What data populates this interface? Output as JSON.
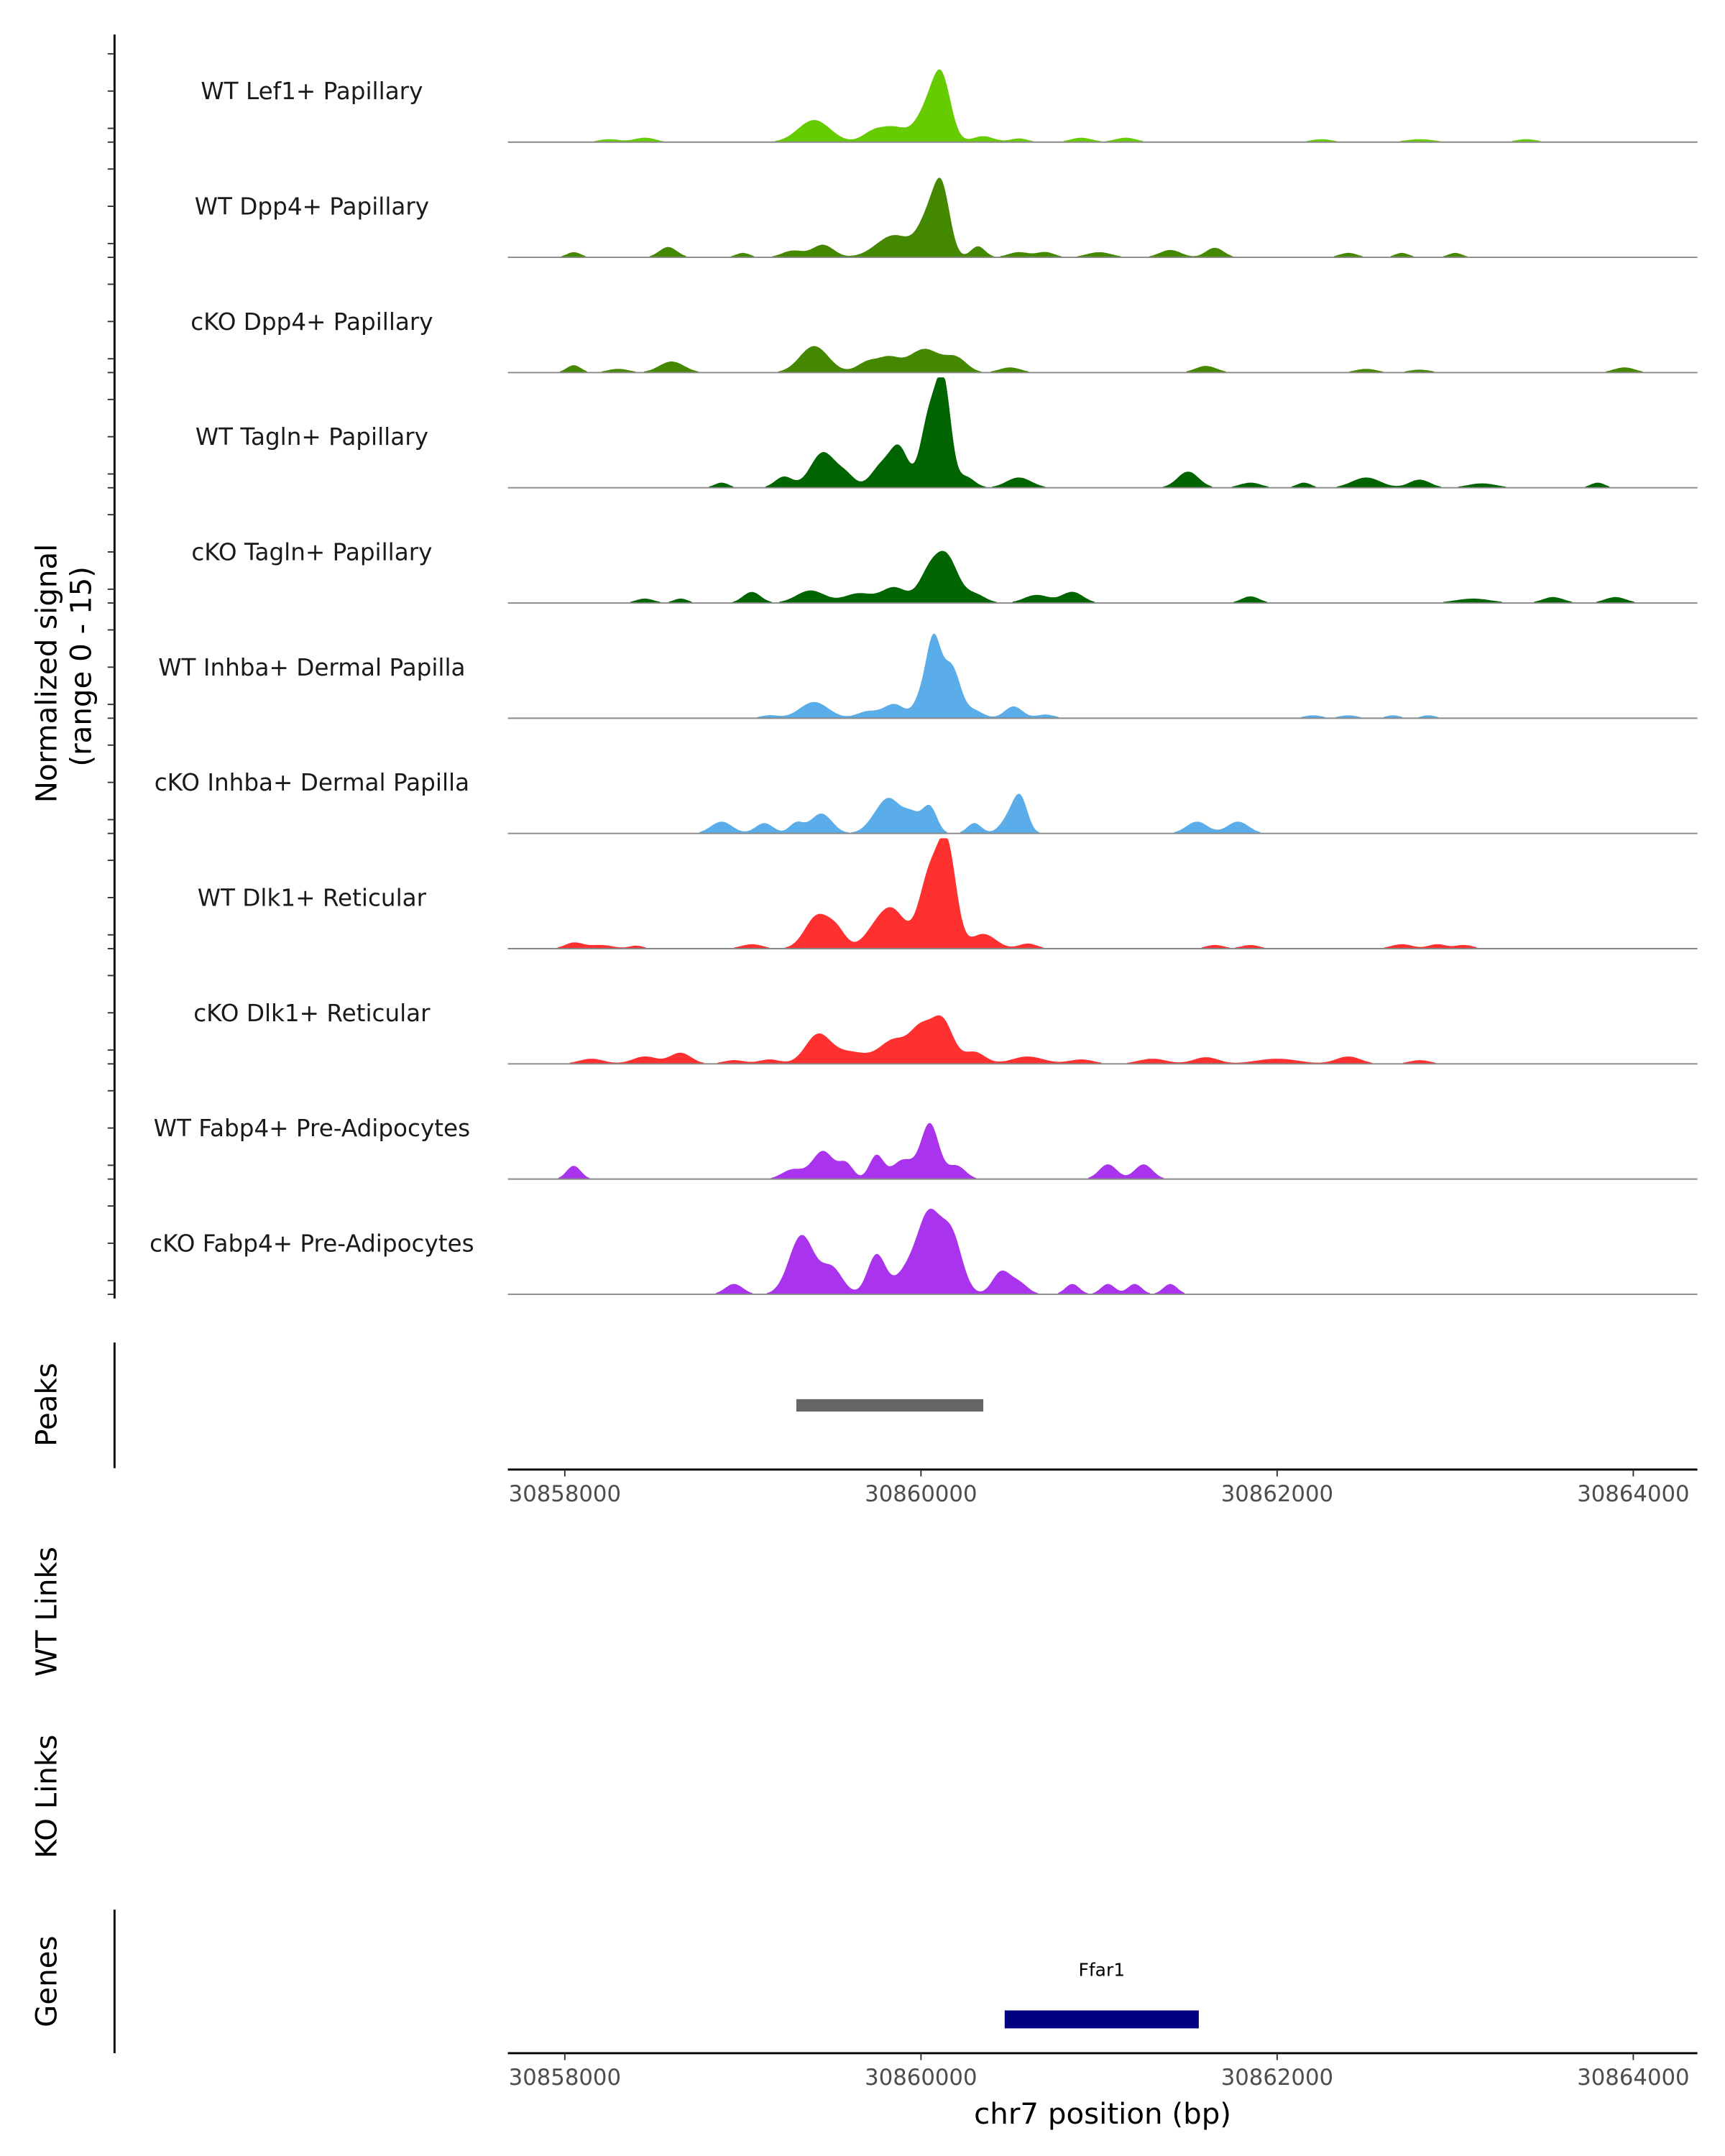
{
  "chart_data": {
    "type": "area",
    "ylabel": "Normalized signal",
    "ylabel_range": "(range 0 - 15)",
    "ylim": [
      0,
      15
    ],
    "xlim": [
      30857680,
      30864360
    ],
    "xlabel": "chr7 position (bp)",
    "xticks": [
      "30858000",
      "30860000",
      "30862000",
      "30864000"
    ],
    "xtick_values": [
      30858000,
      30860000,
      30862000,
      30864000
    ],
    "tracks": [
      {
        "name": "WT Lef1+ Papillary",
        "color": "#66cc00",
        "peaks": [
          [
            30858250,
            0.4,
            60
          ],
          [
            30858450,
            0.6,
            60
          ],
          [
            30859400,
            3.0,
            90
          ],
          [
            30859730,
            1.3,
            60
          ],
          [
            30859850,
            1.9,
            70
          ],
          [
            30860050,
            5.0,
            70
          ],
          [
            30860120,
            6.5,
            50
          ],
          [
            30860350,
            0.8,
            60
          ],
          [
            30860550,
            0.5,
            50
          ],
          [
            30860900,
            0.6,
            60
          ],
          [
            30861150,
            0.6,
            60
          ],
          [
            30862250,
            0.4,
            60
          ],
          [
            30862800,
            0.4,
            80
          ],
          [
            30863400,
            0.4,
            60
          ]
        ]
      },
      {
        "name": "WT Dpp4+ Papillary",
        "color": "#448800",
        "peaks": [
          [
            30858050,
            0.7,
            40
          ],
          [
            30858580,
            1.4,
            50
          ],
          [
            30859000,
            0.6,
            40
          ],
          [
            30859280,
            0.9,
            60
          ],
          [
            30859450,
            1.7,
            60
          ],
          [
            30859850,
            3.0,
            100
          ],
          [
            30860050,
            5.5,
            60
          ],
          [
            30860120,
            7.5,
            45
          ],
          [
            30860320,
            1.5,
            40
          ],
          [
            30860550,
            0.7,
            60
          ],
          [
            30860700,
            0.7,
            50
          ],
          [
            30861000,
            0.7,
            70
          ],
          [
            30861400,
            1.0,
            60
          ],
          [
            30861650,
            1.3,
            50
          ],
          [
            30862400,
            0.6,
            50
          ],
          [
            30862700,
            0.6,
            40
          ],
          [
            30863000,
            0.6,
            40
          ]
        ]
      },
      {
        "name": "cKO Dpp4+ Papillary",
        "color": "#448800",
        "peaks": [
          [
            30858050,
            1.0,
            40
          ],
          [
            30858300,
            0.5,
            60
          ],
          [
            30858600,
            1.5,
            70
          ],
          [
            30859400,
            3.6,
            80
          ],
          [
            30859700,
            1.4,
            60
          ],
          [
            30859820,
            1.8,
            60
          ],
          [
            30860020,
            3.2,
            90
          ],
          [
            30860200,
            1.8,
            60
          ],
          [
            30860500,
            0.7,
            60
          ],
          [
            30861600,
            0.9,
            60
          ],
          [
            30862500,
            0.5,
            60
          ],
          [
            30862800,
            0.4,
            60
          ],
          [
            30863950,
            0.7,
            60
          ]
        ]
      },
      {
        "name": "WT Tagln+ Papillary",
        "color": "#006400",
        "peaks": [
          [
            30858880,
            0.7,
            40
          ],
          [
            30859230,
            1.5,
            50
          ],
          [
            30859450,
            4.8,
            70
          ],
          [
            30859580,
            1.5,
            50
          ],
          [
            30859780,
            3.0,
            60
          ],
          [
            30859880,
            5.0,
            50
          ],
          [
            30860050,
            10.0,
            50
          ],
          [
            30860130,
            12.5,
            40
          ],
          [
            30860250,
            1.5,
            50
          ],
          [
            30860550,
            1.4,
            70
          ],
          [
            30861500,
            2.2,
            60
          ],
          [
            30861850,
            0.7,
            60
          ],
          [
            30862150,
            0.7,
            40
          ],
          [
            30862500,
            1.4,
            80
          ],
          [
            30862800,
            1.1,
            60
          ],
          [
            30863150,
            0.6,
            80
          ],
          [
            30863800,
            0.7,
            40
          ]
        ]
      },
      {
        "name": "cKO Tagln+ Papillary",
        "color": "#006400",
        "peaks": [
          [
            30858450,
            0.6,
            50
          ],
          [
            30858650,
            0.6,
            40
          ],
          [
            30859050,
            1.5,
            50
          ],
          [
            30859380,
            1.7,
            80
          ],
          [
            30859650,
            1.3,
            80
          ],
          [
            30859850,
            2.1,
            70
          ],
          [
            30860050,
            4.2,
            60
          ],
          [
            30860150,
            5.6,
            60
          ],
          [
            30860300,
            1.2,
            60
          ],
          [
            30860650,
            1.1,
            70
          ],
          [
            30860850,
            1.5,
            60
          ],
          [
            30861850,
            0.9,
            50
          ],
          [
            30863100,
            0.6,
            100
          ],
          [
            30863550,
            0.8,
            60
          ],
          [
            30863900,
            0.8,
            60
          ]
        ]
      },
      {
        "name": "WT Inhba+ Dermal Papilla",
        "color": "#5aade8",
        "peaks": [
          [
            30859150,
            0.4,
            50
          ],
          [
            30859400,
            2.2,
            80
          ],
          [
            30859700,
            0.9,
            60
          ],
          [
            30859850,
            1.9,
            60
          ],
          [
            30860000,
            2.5,
            40
          ],
          [
            30860070,
            10.0,
            40
          ],
          [
            30860170,
            7.0,
            50
          ],
          [
            30860300,
            1.0,
            50
          ],
          [
            30860520,
            1.6,
            50
          ],
          [
            30860700,
            0.5,
            50
          ],
          [
            30862200,
            0.4,
            50
          ],
          [
            30862400,
            0.4,
            50
          ],
          [
            30862650,
            0.4,
            40
          ],
          [
            30862850,
            0.4,
            40
          ]
        ]
      },
      {
        "name": "cKO Inhba+ Dermal Papilla",
        "color": "#5aade8",
        "peaks": [
          [
            30858880,
            1.6,
            60
          ],
          [
            30859120,
            1.4,
            50
          ],
          [
            30859300,
            1.4,
            40
          ],
          [
            30859440,
            2.7,
            60
          ],
          [
            30859750,
            1.6,
            60
          ],
          [
            30859830,
            4.0,
            60
          ],
          [
            30859950,
            2.5,
            50
          ],
          [
            30860050,
            3.5,
            40
          ],
          [
            30860300,
            1.4,
            40
          ],
          [
            30860500,
            2.2,
            50
          ],
          [
            30860560,
            4.2,
            40
          ],
          [
            30861550,
            1.6,
            60
          ],
          [
            30861780,
            1.6,
            60
          ]
        ]
      },
      {
        "name": "WT Dlk1+ Reticular",
        "color": "#ff3030",
        "peaks": [
          [
            30858050,
            0.8,
            50
          ],
          [
            30858200,
            0.5,
            70
          ],
          [
            30858400,
            0.4,
            40
          ],
          [
            30859050,
            0.6,
            60
          ],
          [
            30859420,
            4.5,
            70
          ],
          [
            30859530,
            2.0,
            50
          ],
          [
            30859750,
            2.5,
            70
          ],
          [
            30859850,
            4.5,
            70
          ],
          [
            30860050,
            10.0,
            60
          ],
          [
            30860150,
            12.5,
            50
          ],
          [
            30860350,
            2.0,
            70
          ],
          [
            30860600,
            0.7,
            50
          ],
          [
            30861650,
            0.5,
            50
          ],
          [
            30861850,
            0.5,
            50
          ],
          [
            30862700,
            0.6,
            60
          ],
          [
            30862900,
            0.6,
            50
          ],
          [
            30863050,
            0.5,
            50
          ]
        ]
      },
      {
        "name": "cKO Dlk1+ Reticular",
        "color": "#ff3030",
        "peaks": [
          [
            30858150,
            0.7,
            70
          ],
          [
            30858450,
            1.0,
            70
          ],
          [
            30858650,
            1.5,
            60
          ],
          [
            30858950,
            0.5,
            60
          ],
          [
            30859150,
            0.6,
            60
          ],
          [
            30859420,
            3.8,
            70
          ],
          [
            30859600,
            1.6,
            100
          ],
          [
            30859850,
            3.2,
            80
          ],
          [
            30860000,
            4.3,
            60
          ],
          [
            30860120,
            5.8,
            60
          ],
          [
            30860300,
            1.6,
            60
          ],
          [
            30860600,
            1.0,
            90
          ],
          [
            30860900,
            0.6,
            70
          ],
          [
            30861300,
            0.7,
            80
          ],
          [
            30861600,
            0.9,
            70
          ],
          [
            30862000,
            0.7,
            120
          ],
          [
            30862400,
            1.0,
            70
          ],
          [
            30862800,
            0.5,
            60
          ]
        ]
      },
      {
        "name": "WT Fabp4+ Pre-Adipocytes",
        "color": "#aa33ee",
        "peaks": [
          [
            30858050,
            1.8,
            40
          ],
          [
            30859280,
            1.3,
            60
          ],
          [
            30859450,
            3.8,
            60
          ],
          [
            30859580,
            2.0,
            40
          ],
          [
            30859750,
            3.2,
            40
          ],
          [
            30859900,
            2.6,
            60
          ],
          [
            30860050,
            7.5,
            50
          ],
          [
            30860200,
            1.8,
            50
          ],
          [
            30861050,
            2.0,
            50
          ],
          [
            30861250,
            2.0,
            50
          ]
        ]
      },
      {
        "name": "cKO Fabp4+ Pre-Adipocytes",
        "color": "#aa33ee",
        "peaks": [
          [
            30858950,
            1.4,
            50
          ],
          [
            30859330,
            8.0,
            70
          ],
          [
            30859500,
            3.5,
            60
          ],
          [
            30859750,
            5.3,
            50
          ],
          [
            30859950,
            4.0,
            80
          ],
          [
            30860050,
            8.7,
            60
          ],
          [
            30860170,
            8.0,
            60
          ],
          [
            30860450,
            3.0,
            50
          ],
          [
            30860550,
            1.5,
            50
          ],
          [
            30860850,
            1.4,
            40
          ],
          [
            30861050,
            1.4,
            40
          ],
          [
            30861200,
            1.4,
            40
          ],
          [
            30861400,
            1.4,
            40
          ]
        ]
      }
    ],
    "peaks_track": {
      "label": "Peaks",
      "color": "#666666",
      "start": 30859300,
      "end": 30860350
    },
    "links_tracks": [
      "WT Links",
      "KO Links"
    ],
    "genes_track": {
      "label": "Genes",
      "gene": "Ffar1",
      "color": "#000080",
      "start": 30860470,
      "end": 30861560
    }
  }
}
